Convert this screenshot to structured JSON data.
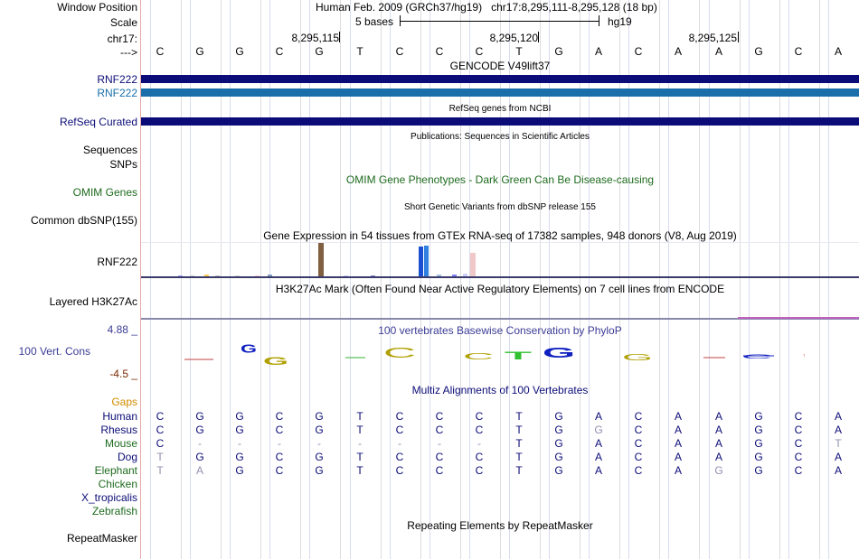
{
  "labels": {
    "window_position": "Window Position",
    "scale": "Scale",
    "chrom": "chr17:",
    "arrow": "--->",
    "rnf222_a": "RNF222",
    "rnf222_b": "RNF222",
    "refseq_curated": "RefSeq Curated",
    "sequences": "Sequences",
    "snps": "SNPs",
    "omim_genes": "OMIM Genes",
    "common_dbsnp": "Common dbSNP(155)",
    "rnf222_expr": "RNF222",
    "layered_h3k27ac": "Layered H3K27Ac",
    "cons_max": "4.88 _",
    "cons_label": "100 Vert. Cons",
    "cons_min": "-4.5 _",
    "gaps": "Gaps",
    "species": [
      "Human",
      "Rhesus",
      "Mouse",
      "Dog",
      "Elephant",
      "Chicken",
      "X_tropicalis",
      "Zebrafish"
    ],
    "repeatmasker": "RepeatMasker"
  },
  "header": {
    "assembly": "Human Feb. 2009 (GRCh37/hg19)",
    "range": "chr17:8,295,111-8,295,128 (18 bp)",
    "scale_text": "5 bases",
    "scale_db": "hg19",
    "positions": [
      "8,295,115",
      "8,295,120",
      "8,295,125"
    ]
  },
  "sequence": [
    "C",
    "G",
    "G",
    "C",
    "G",
    "T",
    "C",
    "C",
    "C",
    "T",
    "G",
    "A",
    "C",
    "A",
    "A",
    "G",
    "C",
    "A"
  ],
  "titles": {
    "gencode": "GENCODE V49lift37",
    "refseq": "RefSeq genes from NCBI",
    "publications": "Publications: Sequences in Scientific Articles",
    "omim": "OMIM Gene Phenotypes - Dark Green Can Be Disease-causing",
    "dbsnp": "Short Genetic Variants from dbSNP release 155",
    "gtex": "Gene Expression in 54 tissues from GTEx RNA-seq of 17382 samples, 948 donors (V8, Aug 2019)",
    "h3k27ac": "H3K27Ac Mark (Often Found Near Active Regulatory Elements) on 7 cell lines from ENCODE",
    "phylop": "100 vertebrates Basewise Conservation by PhyloP",
    "multiz": "Multiz Alignments of 100 Vertebrates",
    "repeats": "Repeating Elements by RepeatMasker"
  },
  "alignment": {
    "Human": [
      "C",
      "G",
      "G",
      "C",
      "G",
      "T",
      "C",
      "C",
      "C",
      "T",
      "G",
      "A",
      "C",
      "A",
      "A",
      "G",
      "C",
      "A"
    ],
    "Rhesus": [
      "C",
      "G",
      "G",
      "C",
      "G",
      "T",
      "C",
      "C",
      "C",
      "T",
      "G",
      "G",
      "C",
      "A",
      "A",
      "G",
      "C",
      "A"
    ],
    "Mouse": [
      "C",
      "-",
      "-",
      "-",
      "-",
      "-",
      "-",
      "-",
      "-",
      "T",
      "G",
      "A",
      "C",
      "A",
      "A",
      "G",
      "C",
      "T"
    ],
    "Dog": [
      "T",
      "G",
      "G",
      "C",
      "G",
      "T",
      "C",
      "C",
      "C",
      "T",
      "G",
      "A",
      "C",
      "A",
      "A",
      "G",
      "C",
      "A"
    ],
    "Elephant": [
      "T",
      "A",
      "G",
      "C",
      "G",
      "T",
      "C",
      "C",
      "C",
      "T",
      "G",
      "A",
      "C",
      "A",
      "G",
      "G",
      "C",
      "A"
    ]
  },
  "alignment_diff": {
    "Rhesus": [
      11
    ],
    "Mouse": [
      17
    ],
    "Dog": [
      0
    ],
    "Elephant": [
      0,
      1,
      14
    ]
  },
  "phylop_letters": [
    "G",
    "G",
    "C",
    "C",
    "T",
    "G",
    "G",
    "C",
    "T"
  ],
  "colors": {
    "gencode_dark": "#0c0c78",
    "gencode_light": "#1a6faa",
    "omim_green": "#1e6b1e",
    "label_blue": "#0c0c78",
    "gaps_orange": "#d08c00",
    "cons_blue": "#3c3c96",
    "cons_red": "#7a2a00"
  },
  "gtex_values": [
    0.02,
    0.01,
    0.06,
    0.04,
    0.03,
    0.02,
    0.05,
    1.0,
    0.02,
    0.03,
    0.88,
    0.92,
    0.05,
    0.06,
    0.09,
    0.7
  ]
}
